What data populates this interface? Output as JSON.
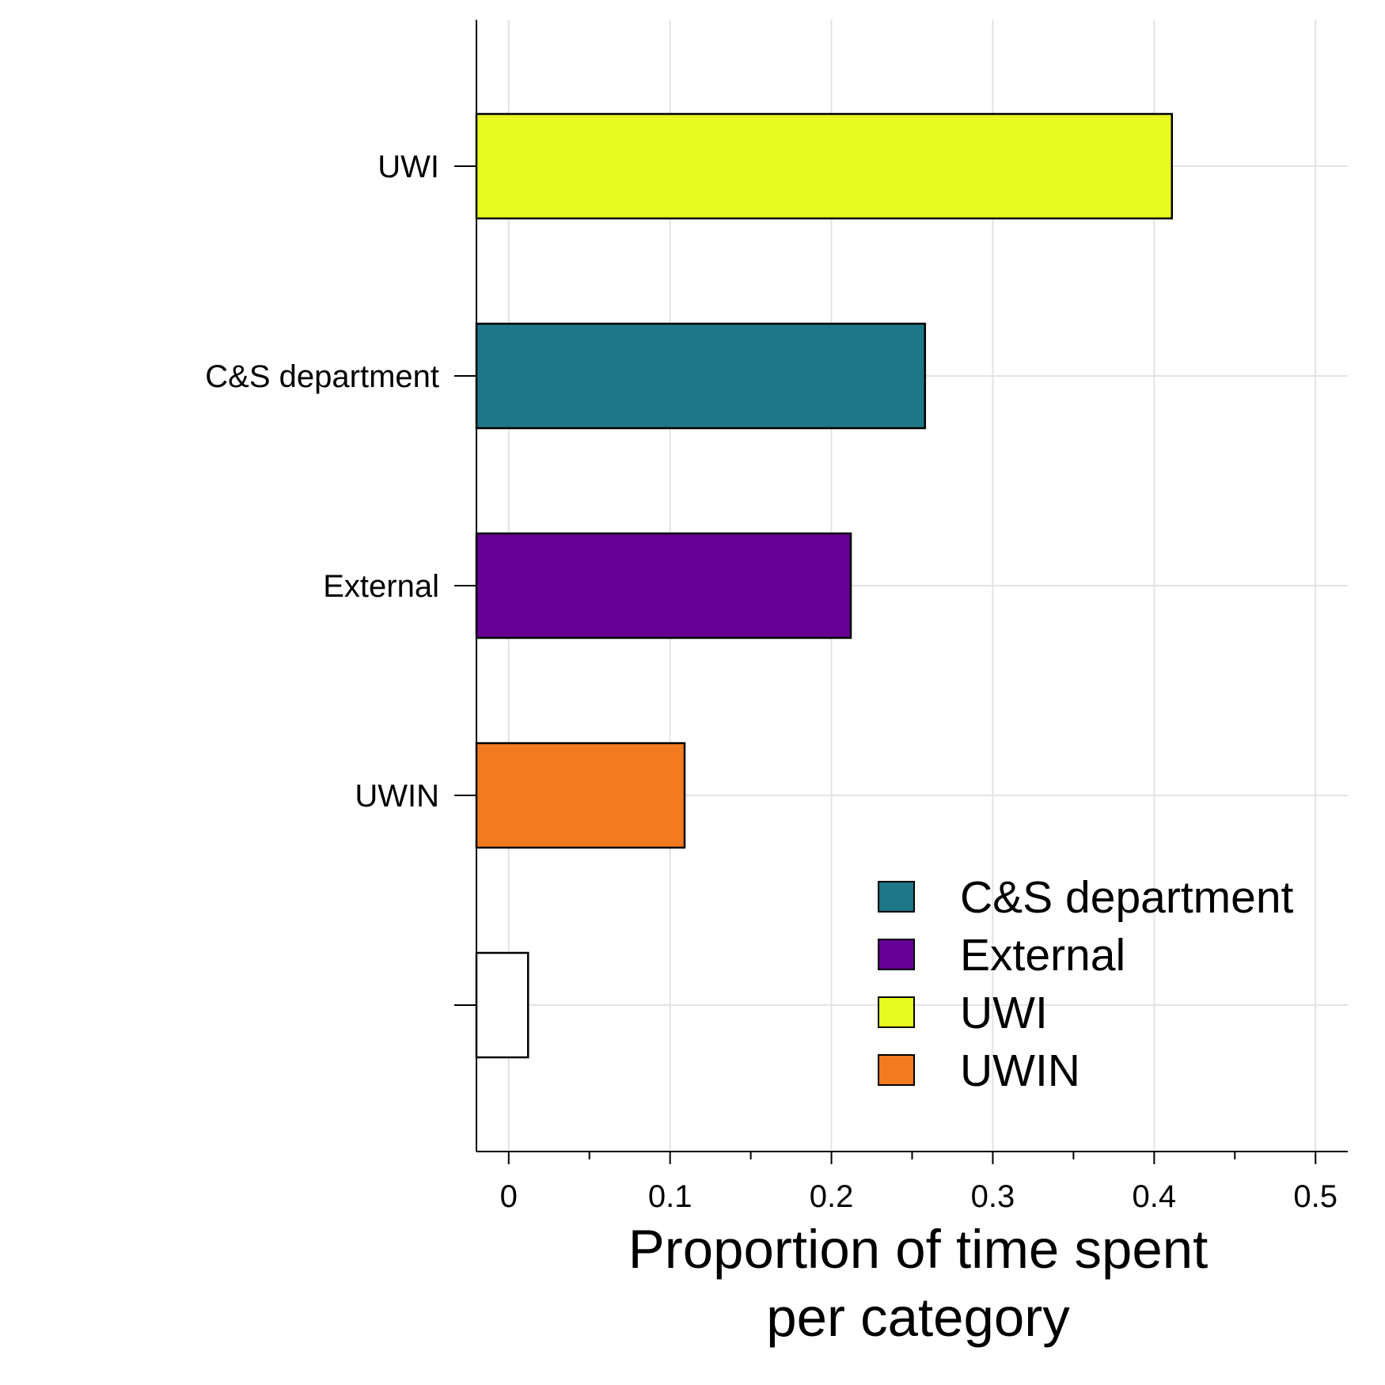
{
  "chart_data": {
    "type": "bar",
    "orientation": "horizontal",
    "categories": [
      "UWI",
      "C&S department",
      "External",
      "UWIN",
      ""
    ],
    "values": [
      0.411,
      0.258,
      0.212,
      0.109,
      0.012
    ],
    "colors": [
      "#e8fb21",
      "#1d7786",
      "#660094",
      "#f47a20",
      "#ffffff"
    ],
    "xlabel_lines": [
      "Proportion of time spent",
      "per category"
    ],
    "ylabel": "",
    "xlim": [
      -0.02,
      0.52
    ],
    "xticks": [
      "0",
      "0.1",
      "0.2",
      "0.3",
      "0.4",
      "0.5"
    ],
    "xtick_values": [
      0,
      0.1,
      0.2,
      0.3,
      0.4,
      0.5
    ],
    "minor_xtick_values": [
      0.05,
      0.15,
      0.25,
      0.35,
      0.45
    ],
    "grid": true,
    "legend": {
      "position": "lower-right",
      "items": [
        {
          "label": "C&S department",
          "color": "#1d7786"
        },
        {
          "label": "External",
          "color": "#660094"
        },
        {
          "label": "UWI",
          "color": "#e8fb21"
        },
        {
          "label": "UWIN",
          "color": "#f47a20"
        }
      ]
    }
  }
}
